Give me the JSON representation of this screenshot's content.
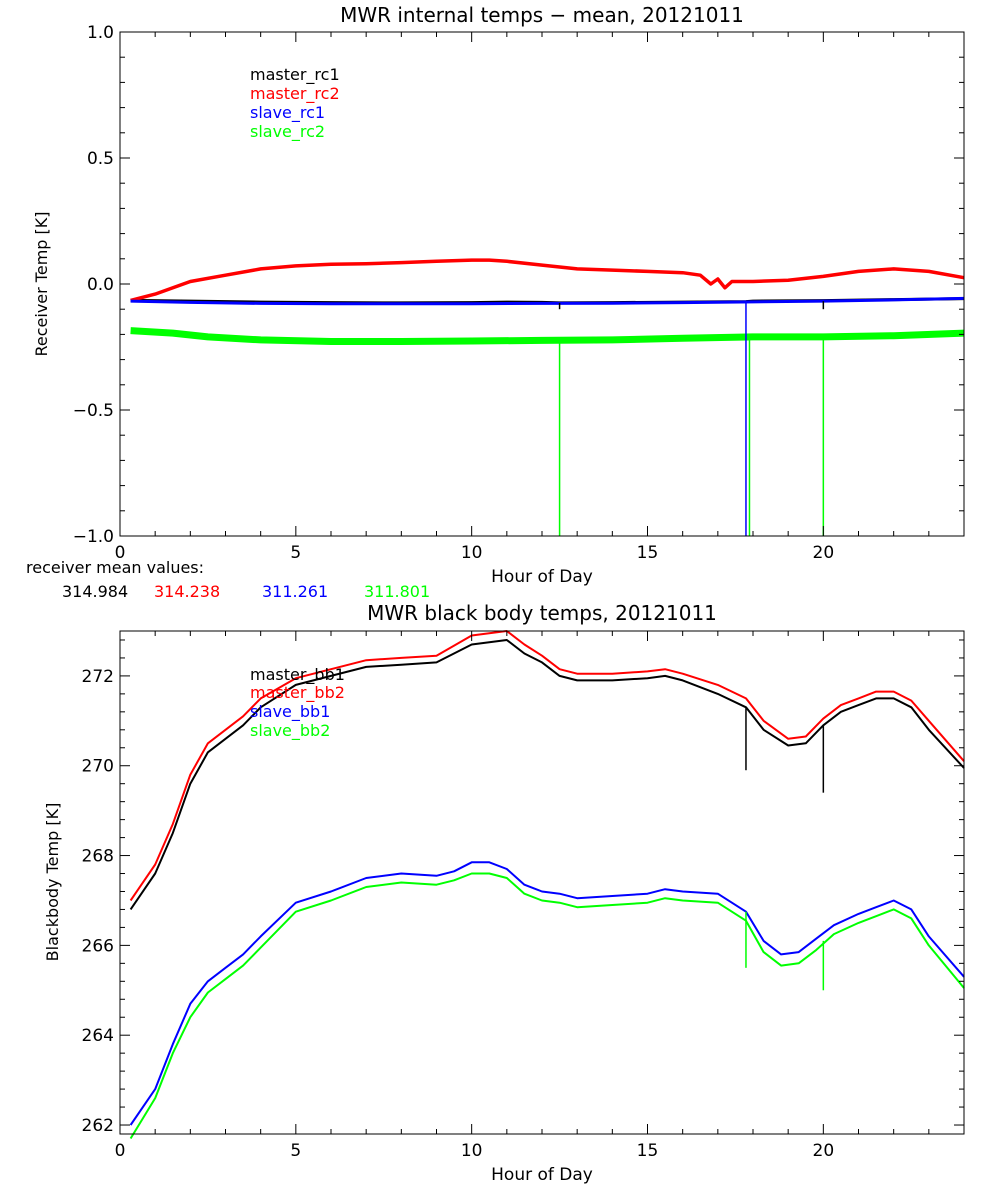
{
  "colors": {
    "master_rc1": "#000000",
    "master_rc2": "#ff0000",
    "slave_rc1": "#0000ff",
    "slave_rc2": "#00ff00",
    "axis": "#000000",
    "background": "#ffffff"
  },
  "mean_values": {
    "label": "receiver mean values:",
    "values": [
      "314.984",
      "314.238",
      "311.261",
      "311.801"
    ]
  },
  "chart_data": [
    {
      "type": "line",
      "title": "MWR internal temps − mean, 20121011",
      "xlabel": "Hour of Day",
      "ylabel": "Receiver Temp [K]",
      "xlim": [
        0,
        24
      ],
      "ylim": [
        -1.0,
        1.0
      ],
      "xticks": [
        0,
        5,
        10,
        15,
        20
      ],
      "yticks": [
        -1.0,
        -0.5,
        0.0,
        0.5,
        1.0
      ],
      "ytick_labels": [
        "−1.0",
        "−0.5",
        "0.0",
        "0.5",
        "1.0"
      ],
      "grid": false,
      "legend_position": "upper-left",
      "series": [
        {
          "name": "master_rc1",
          "color_key": "master_rc1",
          "x": [
            0.3,
            2,
            4,
            6,
            8,
            10,
            11,
            12,
            12.5,
            14,
            16,
            17.8,
            18,
            20,
            22,
            24
          ],
          "y": [
            -0.065,
            -0.068,
            -0.072,
            -0.074,
            -0.075,
            -0.074,
            -0.072,
            -0.073,
            -0.075,
            -0.074,
            -0.072,
            -0.07,
            -0.068,
            -0.066,
            -0.062,
            -0.058
          ]
        },
        {
          "name": "master_rc2",
          "color_key": "master_rc2",
          "x": [
            0.3,
            1,
            2,
            3,
            4,
            5,
            6,
            7,
            8,
            9,
            10,
            10.5,
            11,
            12,
            13,
            14,
            15,
            16,
            16.5,
            16.8,
            17,
            17.2,
            17.4,
            18,
            19,
            20,
            21,
            22,
            23,
            24
          ],
          "y": [
            -0.065,
            -0.04,
            0.01,
            0.035,
            0.06,
            0.072,
            0.078,
            0.08,
            0.085,
            0.09,
            0.095,
            0.095,
            0.09,
            0.075,
            0.06,
            0.055,
            0.05,
            0.045,
            0.035,
            0.0,
            0.02,
            -0.015,
            0.01,
            0.01,
            0.015,
            0.03,
            0.05,
            0.06,
            0.05,
            0.025
          ]
        },
        {
          "name": "slave_rc1",
          "color_key": "slave_rc1",
          "x": [
            0.3,
            2,
            4,
            6,
            8,
            10,
            12,
            14,
            16,
            18,
            20,
            22,
            24
          ],
          "y": [
            -0.068,
            -0.073,
            -0.077,
            -0.078,
            -0.078,
            -0.078,
            -0.077,
            -0.076,
            -0.074,
            -0.071,
            -0.068,
            -0.063,
            -0.057
          ]
        },
        {
          "name": "slave_rc2",
          "color_key": "slave_rc2",
          "x": [
            0.3,
            1.5,
            2.5,
            4,
            6,
            8,
            10,
            12,
            14,
            16,
            18,
            20,
            22,
            24
          ],
          "y": [
            -0.185,
            -0.195,
            -0.21,
            -0.222,
            -0.228,
            -0.228,
            -0.226,
            -0.224,
            -0.222,
            -0.215,
            -0.21,
            -0.21,
            -0.205,
            -0.195
          ]
        }
      ],
      "spikes": [
        {
          "x": 12.5,
          "y1": -0.075,
          "y2": -0.1,
          "color_key": "master_rc1"
        },
        {
          "x": 12.5,
          "y1": -0.224,
          "y2": -1.0,
          "color_key": "slave_rc2"
        },
        {
          "x": 17.8,
          "y1": -0.072,
          "y2": -1.0,
          "color_key": "slave_rc1"
        },
        {
          "x": 17.9,
          "y1": -0.21,
          "y2": -1.0,
          "color_key": "slave_rc2"
        },
        {
          "x": 20.0,
          "y1": -0.068,
          "y2": -0.1,
          "color_key": "master_rc1"
        },
        {
          "x": 20.0,
          "y1": -0.21,
          "y2": -1.0,
          "color_key": "slave_rc2"
        }
      ]
    },
    {
      "type": "line",
      "title": "MWR black body temps, 20121011",
      "xlabel": "Hour of Day",
      "ylabel": "Blackbody Temp [K]",
      "xlim": [
        0,
        24
      ],
      "ylim": [
        261.8,
        273.0
      ],
      "xticks": [
        0,
        5,
        10,
        15,
        20
      ],
      "yticks": [
        262,
        264,
        266,
        268,
        270,
        272
      ],
      "ytick_labels": [
        "262",
        "264",
        "266",
        "268",
        "270",
        "272"
      ],
      "grid": false,
      "legend_position": "upper-left",
      "series": [
        {
          "name": "master_bb1",
          "color_key": "master_rc1",
          "x": [
            0.3,
            1,
            1.5,
            2,
            2.5,
            3,
            3.5,
            4,
            5,
            6,
            7,
            8,
            9,
            10,
            11,
            11.5,
            12,
            12.5,
            13,
            14,
            15,
            15.5,
            16,
            17,
            17.8,
            18.3,
            19,
            19.5,
            20,
            20.5,
            21,
            21.5,
            22,
            22.5,
            23,
            24
          ],
          "y": [
            266.8,
            267.6,
            268.5,
            269.6,
            270.3,
            270.6,
            270.9,
            271.3,
            271.8,
            272.0,
            272.2,
            272.25,
            272.3,
            272.7,
            272.8,
            272.5,
            272.3,
            272.0,
            271.9,
            271.9,
            271.95,
            272.0,
            271.9,
            271.6,
            271.3,
            270.8,
            270.45,
            270.5,
            270.9,
            271.2,
            271.35,
            271.5,
            271.5,
            271.3,
            270.8,
            269.95
          ]
        },
        {
          "name": "master_bb2",
          "color_key": "master_rc2",
          "x": [
            0.3,
            1,
            1.5,
            2,
            2.5,
            3,
            3.5,
            4,
            5,
            6,
            7,
            8,
            9,
            10,
            11,
            11.5,
            12,
            12.5,
            13,
            14,
            15,
            15.5,
            16,
            17,
            17.8,
            18.3,
            19,
            19.5,
            20,
            20.5,
            21,
            21.5,
            22,
            22.5,
            23,
            24
          ],
          "y": [
            267.0,
            267.8,
            268.7,
            269.8,
            270.5,
            270.8,
            271.1,
            271.5,
            271.95,
            272.15,
            272.35,
            272.4,
            272.45,
            272.9,
            273.0,
            272.7,
            272.45,
            272.15,
            272.05,
            272.05,
            272.1,
            272.15,
            272.05,
            271.8,
            271.5,
            271.0,
            270.6,
            270.65,
            271.05,
            271.35,
            271.5,
            271.65,
            271.65,
            271.45,
            271.0,
            270.1
          ]
        },
        {
          "name": "slave_bb1",
          "color_key": "slave_rc1",
          "x": [
            0.3,
            1,
            1.5,
            2,
            2.5,
            3,
            3.5,
            4,
            5,
            6,
            7,
            8,
            9,
            9.5,
            10,
            10.5,
            11,
            11.5,
            12,
            12.5,
            13,
            14,
            15,
            15.5,
            16,
            17,
            17.8,
            18.3,
            18.8,
            19.3,
            19.8,
            20.3,
            21,
            21.5,
            22,
            22.5,
            23,
            24
          ],
          "y": [
            262.0,
            262.8,
            263.8,
            264.7,
            265.2,
            265.5,
            265.8,
            266.2,
            266.95,
            267.2,
            267.5,
            267.6,
            267.55,
            267.65,
            267.85,
            267.85,
            267.7,
            267.35,
            267.2,
            267.15,
            267.05,
            267.1,
            267.15,
            267.25,
            267.2,
            267.15,
            266.75,
            266.1,
            265.8,
            265.85,
            266.15,
            266.45,
            266.7,
            266.85,
            267.0,
            266.8,
            266.2,
            265.3
          ]
        },
        {
          "name": "slave_bb2",
          "color_key": "slave_rc2",
          "x": [
            0.3,
            1,
            1.5,
            2,
            2.5,
            3,
            3.5,
            4,
            5,
            6,
            7,
            8,
            9,
            9.5,
            10,
            10.5,
            11,
            11.5,
            12,
            12.5,
            13,
            14,
            15,
            15.5,
            16,
            17,
            17.8,
            18.3,
            18.8,
            19.3,
            19.8,
            20.3,
            21,
            21.5,
            22,
            22.5,
            23,
            24
          ],
          "y": [
            261.7,
            262.6,
            263.6,
            264.4,
            264.95,
            265.25,
            265.55,
            265.95,
            266.75,
            267.0,
            267.3,
            267.4,
            267.35,
            267.45,
            267.6,
            267.6,
            267.5,
            267.15,
            267.0,
            266.95,
            266.85,
            266.9,
            266.95,
            267.05,
            267.0,
            266.95,
            266.55,
            265.85,
            265.55,
            265.6,
            265.9,
            266.25,
            266.5,
            266.65,
            266.8,
            266.6,
            266.0,
            265.05
          ]
        }
      ],
      "spikes": [
        {
          "x": 17.8,
          "y1": 271.3,
          "y2": 269.9,
          "color_key": "master_rc1"
        },
        {
          "x": 20.0,
          "y1": 270.9,
          "y2": 269.4,
          "color_key": "master_rc1"
        },
        {
          "x": 17.8,
          "y1": 266.75,
          "y2": 265.5,
          "color_key": "slave_rc2"
        },
        {
          "x": 20.0,
          "y1": 266.1,
          "y2": 265.0,
          "color_key": "slave_rc2"
        }
      ]
    }
  ]
}
